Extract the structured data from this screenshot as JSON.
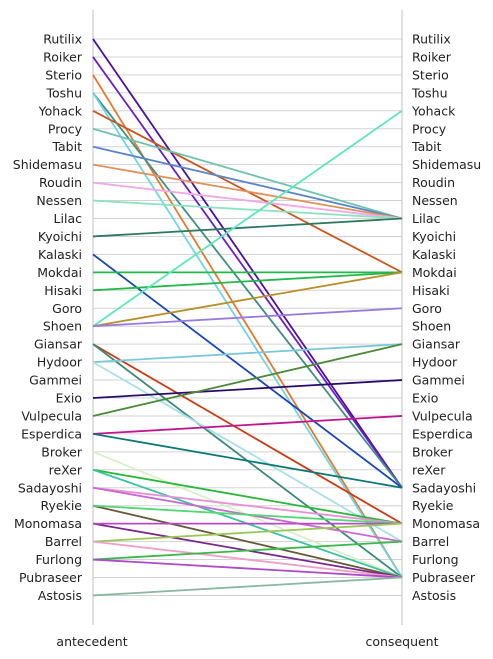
{
  "chart_data": {
    "type": "parallel-categories",
    "xlabel_left": "antecedent",
    "xlabel_right": "consequent",
    "categories": [
      "Rutilix",
      "Roiker",
      "Sterio",
      "Toshu",
      "Yohack",
      "Procy",
      "Tabit",
      "Shidemasu",
      "Roudin",
      "Nessen",
      "Lilac",
      "Kyoichi",
      "Kalaski",
      "Mokdai",
      "Hisaki",
      "Goro",
      "Shoen",
      "Giansar",
      "Hydoor",
      "Gammei",
      "Exio",
      "Vulpecula",
      "Esperdica",
      "Broker",
      "reXer",
      "Sadayoshi",
      "Ryekie",
      "Monomasa",
      "Barrel",
      "Furlong",
      "Pubraseer",
      "Astosis"
    ],
    "links": [
      {
        "from": "Rutilix",
        "to": "Sadayoshi",
        "color": "#4b0fa8"
      },
      {
        "from": "Roiker",
        "to": "Sadayoshi",
        "color": "#6a1fc4"
      },
      {
        "from": "Sterio",
        "to": "Pubraseer",
        "color": "#e8782e"
      },
      {
        "from": "Toshu",
        "to": "Sadayoshi",
        "color": "#3f8f86"
      },
      {
        "from": "Toshu",
        "to": "Pubraseer",
        "color": "#6fd6e6"
      },
      {
        "from": "Yohack",
        "to": "Mokdai",
        "color": "#d2541c"
      },
      {
        "from": "Procy",
        "to": "Lilac",
        "color": "#6cc4b0"
      },
      {
        "from": "Tabit",
        "to": "Lilac",
        "color": "#5a86c8"
      },
      {
        "from": "Shidemasu",
        "to": "Lilac",
        "color": "#e0915a"
      },
      {
        "from": "Roudin",
        "to": "Lilac",
        "color": "#f0a8e8"
      },
      {
        "from": "Nessen",
        "to": "Lilac",
        "color": "#8de3c0"
      },
      {
        "from": "Kyoichi",
        "to": "Lilac",
        "color": "#2f7a5e"
      },
      {
        "from": "Kalaski",
        "to": "Sadayoshi",
        "color": "#1a46b8"
      },
      {
        "from": "Mokdai",
        "to": "Mokdai",
        "color": "#22b84a"
      },
      {
        "from": "Hisaki",
        "to": "Mokdai",
        "color": "#22b84a"
      },
      {
        "from": "Shoen",
        "to": "Yohack",
        "color": "#5de8b8"
      },
      {
        "from": "Shoen",
        "to": "Mokdai",
        "color": "#b8902a"
      },
      {
        "from": "Shoen",
        "to": "Goro",
        "color": "#9a7ae0"
      },
      {
        "from": "Giansar",
        "to": "Monomasa",
        "color": "#cc3a14"
      },
      {
        "from": "Giansar",
        "to": "Pubraseer",
        "color": "#3a8a7a"
      },
      {
        "from": "Hydoor",
        "to": "Giansar",
        "color": "#7ac8d8"
      },
      {
        "from": "Hydoor",
        "to": "Barrel",
        "color": "#a8e0ea"
      },
      {
        "from": "Exio",
        "to": "Gammei",
        "color": "#2a0a6a"
      },
      {
        "from": "Vulpecula",
        "to": "Giansar",
        "color": "#4a8a38"
      },
      {
        "from": "Esperdica",
        "to": "Vulpecula",
        "color": "#c0168e"
      },
      {
        "from": "Esperdica",
        "to": "Sadayoshi",
        "color": "#0a7a78"
      },
      {
        "from": "Broker",
        "to": "Pubraseer",
        "color": "#d8f0c8"
      },
      {
        "from": "reXer",
        "to": "Monomasa",
        "color": "#2ab83a"
      },
      {
        "from": "reXer",
        "to": "Pubraseer",
        "color": "#3ac4a0"
      },
      {
        "from": "Sadayoshi",
        "to": "Monomasa",
        "color": "#e890d8"
      },
      {
        "from": "Sadayoshi",
        "to": "Barrel",
        "color": "#c86ad0"
      },
      {
        "from": "Ryekie",
        "to": "Pubraseer",
        "color": "#6a5a3a"
      },
      {
        "from": "Ryekie",
        "to": "Monomasa",
        "color": "#52d872"
      },
      {
        "from": "Monomasa",
        "to": "Pubraseer",
        "color": "#7a2a8a"
      },
      {
        "from": "Monomasa",
        "to": "Monomasa",
        "color": "#b84ac8"
      },
      {
        "from": "Barrel",
        "to": "Monomasa",
        "color": "#9ac858"
      },
      {
        "from": "Barrel",
        "to": "Pubraseer",
        "color": "#f0a0c8"
      },
      {
        "from": "Furlong",
        "to": "Barrel",
        "color": "#3ab84a"
      },
      {
        "from": "Furlong",
        "to": "Pubraseer",
        "color": "#b04ac8"
      },
      {
        "from": "Astosis",
        "to": "Pubraseer",
        "color": "#8ab8a0"
      }
    ],
    "grid": true,
    "grid_color": "#d3d3d3",
    "axis_color": "#cccccc"
  }
}
